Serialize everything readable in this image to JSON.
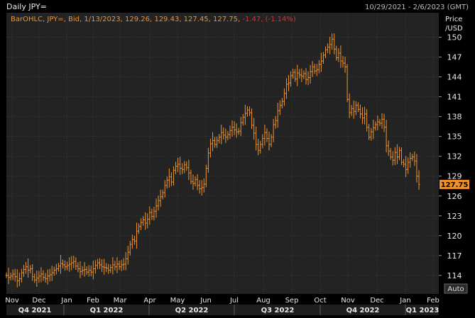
{
  "header": {
    "title": "Daily JPY=",
    "date_range": "10/29/2021 - 2/6/2023 (GMT)"
  },
  "legend_text": {
    "prefix": "BarOHLC, JPY=, Bid, 1/13/2023, 129.26, 129.43, 127.45, 127.75, ",
    "change": "-1.47, (-1.14%)"
  },
  "axis": {
    "price_label_line1": "Price",
    "price_label_line2": "/USD",
    "auto_label": "Auto"
  },
  "colors": {
    "background": "#000000",
    "plot_bg": "#232323",
    "grid": "#3a3a3a",
    "bar": "#f0922b",
    "last_price_bg": "#f0922b",
    "change_text": "#e03030",
    "quarter_bg": "#1f1f1f"
  },
  "chart_data": {
    "type": "bar",
    "style": "OHLC",
    "last_price": "127.75",
    "ylim": [
      111.2,
      153.7
    ],
    "y_ticks": [
      "114",
      "117",
      "120",
      "123",
      "126",
      "129",
      "132",
      "135",
      "138",
      "141",
      "144",
      "147",
      "150"
    ],
    "month_ticks": [
      "Nov",
      "Dec",
      "Jan",
      "Feb",
      "Mar",
      "Apr",
      "May",
      "Jun",
      "Jul",
      "Aug",
      "Sep",
      "Oct",
      "Nov",
      "Dec",
      "Jan",
      "Feb"
    ],
    "quarter_labels": [
      "Q4 2021",
      "Q1 2022",
      "Q2 2022",
      "Q3 2022",
      "Q4 2022",
      "Q1 2023"
    ],
    "series": [
      {
        "values": [
          114.0,
          113.7,
          113.9,
          114.2,
          113.8,
          113.2,
          113.5,
          114.4,
          114.9,
          115.3,
          114.8,
          115.0,
          113.8,
          113.3,
          113.6,
          113.9,
          114.2,
          113.7,
          113.5,
          113.9,
          114.1,
          114.4,
          114.8,
          115.0,
          115.4,
          115.8,
          115.6,
          115.3,
          115.5,
          115.7,
          115.9,
          116.1,
          115.4,
          115.0,
          114.6,
          114.8,
          114.9,
          114.5,
          114.8,
          114.5,
          115.0,
          115.5,
          115.9,
          115.6,
          115.3,
          115.2,
          115.1,
          114.8,
          115.2,
          115.6,
          115.3,
          115.7,
          115.3,
          115.6,
          115.7,
          116.5,
          117.5,
          118.7,
          119.4,
          119.2,
          120.7,
          121.4,
          122.0,
          122.4,
          121.9,
          122.5,
          123.5,
          122.9,
          123.7,
          124.5,
          125.3,
          125.9,
          126.5,
          127.6,
          128.4,
          128.9,
          128.1,
          129.9,
          130.5,
          130.8,
          130.2,
          130.0,
          130.7,
          130.3,
          129.5,
          128.2,
          127.9,
          128.5,
          127.6,
          127.1,
          127.3,
          127.8,
          130.2,
          132.5,
          133.9,
          134.4,
          133.8,
          134.4,
          134.9,
          135.6,
          135.2,
          134.9,
          135.3,
          135.9,
          136.4,
          136.0,
          135.7,
          135.8,
          137.1,
          137.9,
          138.5,
          139.0,
          138.6,
          136.7,
          135.5,
          133.8,
          132.9,
          133.8,
          134.7,
          135.6,
          134.7,
          133.8,
          134.9,
          136.8,
          137.4,
          138.9,
          139.7,
          140.3,
          141.5,
          142.9,
          143.1,
          144.2,
          144.7,
          143.7,
          144.6,
          144.3,
          144.1,
          144.5,
          143.6,
          143.9,
          144.8,
          145.5,
          144.9,
          145.1,
          145.9,
          146.4,
          147.3,
          148.1,
          148.5,
          148.9,
          149.7,
          148.2,
          146.9,
          147.6,
          146.4,
          146.1,
          145.5,
          140.6,
          138.6,
          139.2,
          138.8,
          139.7,
          139.1,
          138.4,
          137.8,
          138.4,
          136.4,
          134.9,
          135.7,
          136.3,
          136.8,
          137.2,
          137.0,
          137.6,
          136.4,
          133.6,
          132.8,
          131.9,
          131.4,
          132.6,
          131.9,
          132.9,
          131.1,
          130.8,
          130.0,
          131.1,
          131.7,
          131.9,
          131.3,
          129.0,
          127.75
        ]
      }
    ]
  }
}
